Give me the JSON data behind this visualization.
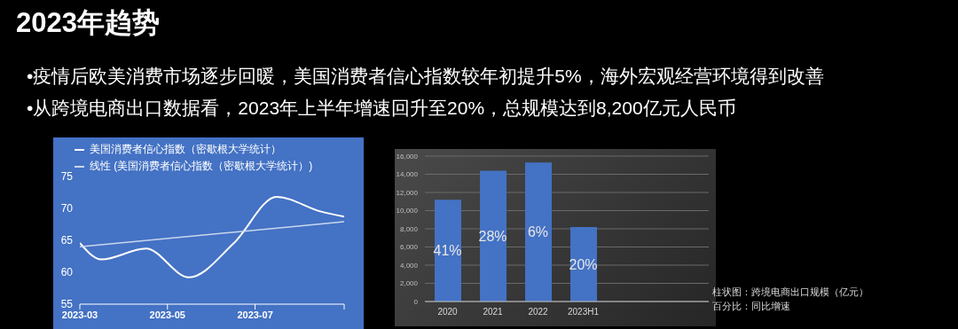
{
  "chart_data": [
    {
      "type": "other",
      "title": "2023年趋势",
      "annotations": [
        "•疫情后欧美消费市场逐步回暖，美国消费者信心指数较年初提升5%，海外宏观经营环境得到改善",
        "•从跨境电商出口数据看，2023年上半年增速回升至20%，总规模达到8,200亿元人民币"
      ]
    },
    {
      "type": "line",
      "series": [
        {
          "name": "美国消费者信心指数（密歇根大学统计）",
          "color": "#ffffff",
          "x": [
            "2023-03-01",
            "2023-03-16",
            "2023-04-16",
            "2023-05-16",
            "2023-06-16",
            "2023-07-16",
            "2023-08-16",
            "2023-09-01"
          ],
          "values": [
            64.6,
            62.0,
            63.7,
            59.2,
            64.5,
            71.8,
            69.5,
            68.7
          ]
        },
        {
          "name": "线性 (美国消费者信心指数（密歇根大学统计）)",
          "color": "#c9d7ef",
          "x": [
            "2023-03-01",
            "2023-09-01"
          ],
          "values": [
            64.0,
            67.9
          ]
        }
      ],
      "xlim": [
        "2023-03",
        "2023-09"
      ],
      "xticks": [
        "2023-03",
        "2023-05",
        "2023-07",
        {
          "value": "2023-09",
          "label": null
        }
      ],
      "ylim": [
        55,
        75
      ],
      "yticks": [
        55,
        60,
        65,
        70,
        75
      ],
      "grid": false,
      "legend": "top left",
      "marker": "none",
      "line_style": "solid"
    },
    {
      "type": "bar",
      "categories": [
        "2020",
        "2021",
        "2022",
        "2023H1"
      ],
      "values": [
        11200,
        14400,
        15300,
        8200
      ],
      "color": "#4472c4",
      "ylim": [
        0,
        16000
      ],
      "yticks": [
        0,
        {
          "value": 2000,
          "label": "2,000"
        },
        {
          "value": 4000,
          "label": "4,000"
        },
        {
          "value": 6000,
          "label": "6,000"
        },
        {
          "value": 8000,
          "label": "8,000"
        },
        {
          "value": 10000,
          "label": "10,000"
        },
        {
          "value": 12000,
          "label": "12,000"
        },
        {
          "value": 14000,
          "label": "14,000"
        },
        {
          "value": 16000,
          "label": "16,000"
        }
      ],
      "grid": "y",
      "annotations": [
        "41%",
        "28%",
        "6%",
        "20%",
        "柱状图：跨境电商出口规模（亿元）",
        "百分比：同比增速"
      ]
    }
  ]
}
